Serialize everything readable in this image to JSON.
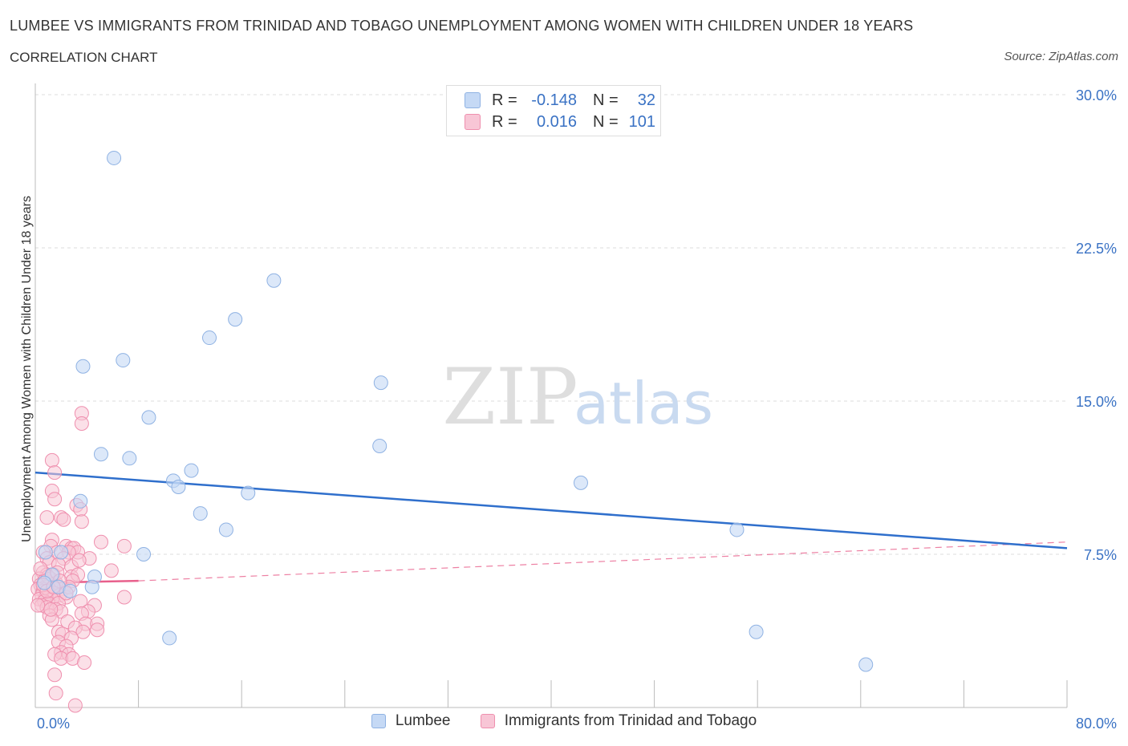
{
  "header": {
    "title": "LUMBEE VS IMMIGRANTS FROM TRINIDAD AND TOBAGO UNEMPLOYMENT AMONG WOMEN WITH CHILDREN UNDER 18 YEARS",
    "subtitle": "CORRELATION CHART",
    "source": "Source: ZipAtlas.com"
  },
  "watermark": {
    "zip": "ZIP",
    "atlas": "atlas"
  },
  "legend_box": {
    "rows": [
      {
        "r_label": "R =",
        "r_value": "-0.148",
        "n_label": "N =",
        "n_value": "32"
      },
      {
        "r_label": "R =",
        "r_value": "0.016",
        "n_label": "N =",
        "n_value": "101"
      }
    ]
  },
  "colors": {
    "lumbee_fill": "#c5d9f5",
    "lumbee_stroke": "#8fb2e3",
    "lumbee_line": "#2f6fcc",
    "trinidad_fill": "#f8c6d6",
    "trinidad_stroke": "#ef8fae",
    "trinidad_line": "#e8608c",
    "axis_text": "#3a72c4",
    "grid": "#dddddd"
  },
  "chart_data": {
    "type": "scatter",
    "title": "LUMBEE VS IMMIGRANTS FROM TRINIDAD AND TOBAGO UNEMPLOYMENT AMONG WOMEN WITH CHILDREN UNDER 18 YEARS",
    "ylabel": "Unemployment Among Women with Children Under 18 years",
    "xlabel": "",
    "xlim": [
      0,
      80
    ],
    "ylim": [
      0,
      30
    ],
    "x_tick_labels": [
      "0.0%",
      "80.0%"
    ],
    "y_ticks": [
      7.5,
      15.0,
      22.5,
      30.0
    ],
    "y_tick_labels": [
      "7.5%",
      "15.0%",
      "22.5%",
      "30.0%"
    ],
    "grid": true,
    "legend_position": "bottom",
    "series": [
      {
        "name": "Lumbee",
        "r": -0.148,
        "n": 32,
        "trend": {
          "x": [
            0,
            80
          ],
          "y": [
            11.5,
            7.8
          ]
        },
        "points": [
          [
            6.1,
            26.9
          ],
          [
            18.5,
            20.9
          ],
          [
            15.5,
            19.0
          ],
          [
            13.5,
            18.1
          ],
          [
            6.8,
            17.0
          ],
          [
            3.7,
            16.7
          ],
          [
            26.8,
            15.9
          ],
          [
            8.8,
            14.2
          ],
          [
            26.7,
            12.8
          ],
          [
            5.1,
            12.4
          ],
          [
            7.3,
            12.2
          ],
          [
            12.1,
            11.6
          ],
          [
            10.7,
            11.1
          ],
          [
            11.1,
            10.8
          ],
          [
            16.5,
            10.5
          ],
          [
            42.3,
            11.0
          ],
          [
            3.5,
            10.1
          ],
          [
            12.8,
            9.5
          ],
          [
            14.8,
            8.7
          ],
          [
            54.4,
            8.7
          ],
          [
            8.4,
            7.5
          ],
          [
            0.8,
            7.6
          ],
          [
            1.3,
            6.5
          ],
          [
            2.0,
            7.6
          ],
          [
            4.6,
            6.4
          ],
          [
            1.8,
            5.9
          ],
          [
            4.4,
            5.9
          ],
          [
            2.7,
            5.7
          ],
          [
            10.4,
            3.4
          ],
          [
            55.9,
            3.7
          ],
          [
            64.4,
            2.1
          ],
          [
            0.7,
            6.1
          ]
        ]
      },
      {
        "name": "Immigrants from Trinidad and Tobago",
        "r": 0.016,
        "n": 101,
        "trend": {
          "x": [
            0,
            8
          ],
          "y": [
            6.1,
            6.2
          ],
          "dashed_x": [
            8,
            80
          ],
          "dashed_y": [
            6.2,
            8.1
          ]
        },
        "points": [
          [
            3.6,
            14.4
          ],
          [
            3.6,
            13.9
          ],
          [
            1.3,
            12.1
          ],
          [
            1.5,
            11.5
          ],
          [
            1.3,
            10.6
          ],
          [
            1.5,
            10.2
          ],
          [
            3.2,
            9.9
          ],
          [
            3.5,
            9.7
          ],
          [
            0.9,
            9.3
          ],
          [
            2.0,
            9.3
          ],
          [
            2.2,
            9.2
          ],
          [
            3.6,
            9.1
          ],
          [
            1.3,
            8.2
          ],
          [
            5.1,
            8.1
          ],
          [
            6.9,
            7.9
          ],
          [
            1.2,
            7.9
          ],
          [
            2.4,
            7.9
          ],
          [
            2.8,
            7.8
          ],
          [
            3.0,
            7.8
          ],
          [
            0.6,
            7.6
          ],
          [
            1.7,
            7.6
          ],
          [
            3.3,
            7.6
          ],
          [
            2.6,
            7.6
          ],
          [
            0.9,
            7.3
          ],
          [
            2.2,
            7.3
          ],
          [
            4.2,
            7.3
          ],
          [
            1.1,
            7.1
          ],
          [
            1.8,
            7.0
          ],
          [
            2.8,
            6.9
          ],
          [
            5.9,
            6.7
          ],
          [
            0.6,
            6.6
          ],
          [
            0.9,
            6.5
          ],
          [
            1.4,
            6.5
          ],
          [
            2.8,
            6.4
          ],
          [
            3.3,
            6.5
          ],
          [
            0.3,
            6.3
          ],
          [
            0.7,
            6.2
          ],
          [
            1.2,
            6.3
          ],
          [
            1.6,
            6.1
          ],
          [
            2.9,
            6.2
          ],
          [
            0.4,
            6.0
          ],
          [
            0.8,
            5.9
          ],
          [
            1.0,
            5.9
          ],
          [
            1.5,
            5.8
          ],
          [
            2.2,
            5.8
          ],
          [
            0.2,
            5.8
          ],
          [
            0.6,
            5.7
          ],
          [
            1.1,
            5.6
          ],
          [
            1.4,
            5.6
          ],
          [
            1.9,
            5.5
          ],
          [
            2.4,
            5.4
          ],
          [
            0.5,
            5.5
          ],
          [
            0.8,
            5.4
          ],
          [
            1.3,
            5.3
          ],
          [
            0.3,
            5.3
          ],
          [
            0.7,
            5.2
          ],
          [
            1.0,
            5.1
          ],
          [
            1.8,
            5.1
          ],
          [
            3.5,
            5.2
          ],
          [
            4.6,
            5.0
          ],
          [
            0.5,
            5.0
          ],
          [
            0.9,
            4.9
          ],
          [
            1.6,
            4.8
          ],
          [
            2.0,
            4.7
          ],
          [
            4.1,
            4.7
          ],
          [
            6.9,
            5.4
          ],
          [
            1.1,
            4.5
          ],
          [
            3.6,
            4.6
          ],
          [
            1.3,
            4.3
          ],
          [
            2.5,
            4.2
          ],
          [
            3.9,
            4.1
          ],
          [
            4.8,
            4.1
          ],
          [
            3.1,
            3.9
          ],
          [
            4.8,
            3.8
          ],
          [
            1.8,
            3.7
          ],
          [
            3.7,
            3.7
          ],
          [
            2.1,
            3.6
          ],
          [
            2.8,
            3.4
          ],
          [
            1.8,
            3.2
          ],
          [
            2.4,
            3.0
          ],
          [
            2.0,
            2.7
          ],
          [
            1.5,
            2.6
          ],
          [
            2.6,
            2.6
          ],
          [
            2.0,
            2.4
          ],
          [
            2.9,
            2.4
          ],
          [
            3.8,
            2.2
          ],
          [
            1.5,
            1.6
          ],
          [
            1.6,
            0.7
          ],
          [
            3.1,
            0.1
          ],
          [
            1.0,
            6.4
          ],
          [
            0.4,
            6.8
          ],
          [
            2.6,
            5.9
          ],
          [
            1.7,
            6.6
          ],
          [
            0.2,
            5.0
          ],
          [
            1.2,
            4.8
          ],
          [
            2.4,
            5.6
          ],
          [
            0.6,
            6.0
          ],
          [
            1.9,
            6.2
          ],
          [
            0.9,
            5.7
          ],
          [
            1.4,
            5.9
          ],
          [
            3.4,
            7.2
          ]
        ]
      }
    ]
  }
}
